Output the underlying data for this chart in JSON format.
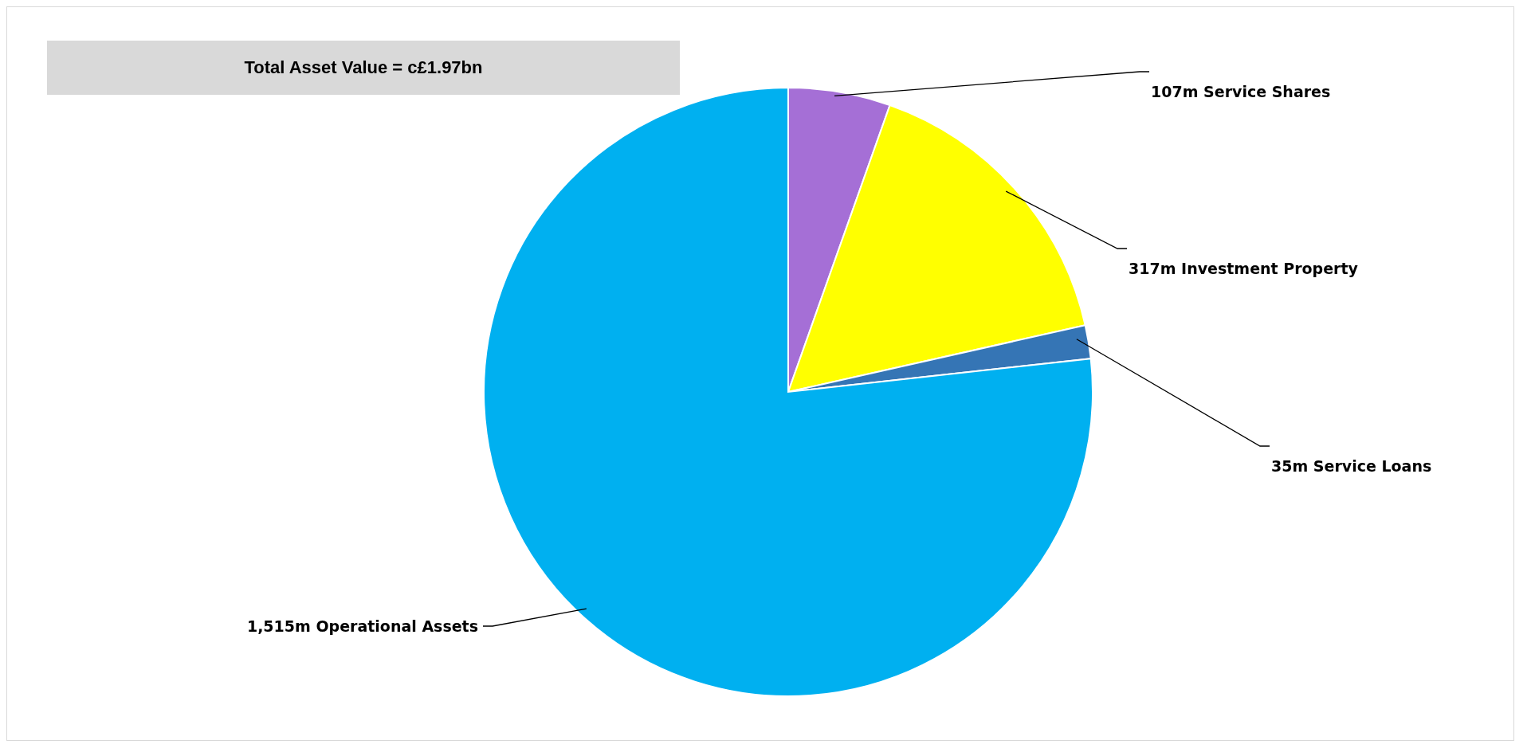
{
  "chart_data": {
    "type": "pie",
    "title": "Total Asset Value = c£1.97bn",
    "categories": [
      "Service Shares",
      "Investment Property",
      "Service Loans",
      "Operational Assets"
    ],
    "values": [
      107,
      317,
      35,
      1515
    ],
    "colors": [
      "#a56fd6",
      "#ffff00",
      "#3575b5",
      "#00b0f0"
    ],
    "value_labels": [
      "107m",
      "317m",
      "35m",
      "1,515m"
    ]
  }
}
